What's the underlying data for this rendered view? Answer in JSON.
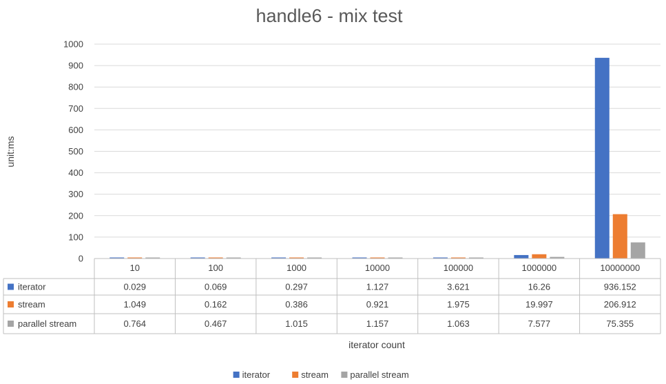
{
  "chart_data": {
    "type": "bar",
    "title": "handle6 - mix test",
    "xlabel": "iterator count",
    "ylabel": "unit:ms",
    "ylim": [
      0,
      1000
    ],
    "yticks": [
      0,
      100,
      200,
      300,
      400,
      500,
      600,
      700,
      800,
      900,
      1000
    ],
    "grid": true,
    "legend_position": "bottom",
    "categories": [
      "10",
      "100",
      "1000",
      "10000",
      "100000",
      "1000000",
      "10000000"
    ],
    "series": [
      {
        "name": "iterator",
        "color": "#4472C4",
        "values": [
          0.029,
          0.069,
          0.297,
          1.127,
          3.621,
          16.26,
          936.152
        ],
        "labels": [
          "0.029",
          "0.069",
          "0.297",
          "1.127",
          "3.621",
          "16.26",
          "936.152"
        ]
      },
      {
        "name": "stream",
        "color": "#ED7D31",
        "values": [
          1.049,
          0.162,
          0.386,
          0.921,
          1.975,
          19.997,
          206.912
        ],
        "labels": [
          "1.049",
          "0.162",
          "0.386",
          "0.921",
          "1.975",
          "19.997",
          "206.912"
        ]
      },
      {
        "name": "parallel stream",
        "color": "#A5A5A5",
        "values": [
          0.764,
          0.467,
          1.015,
          1.157,
          1.063,
          7.577,
          75.355
        ],
        "labels": [
          "0.764",
          "0.467",
          "1.015",
          "1.157",
          "1.063",
          "7.577",
          "75.355"
        ]
      }
    ]
  }
}
